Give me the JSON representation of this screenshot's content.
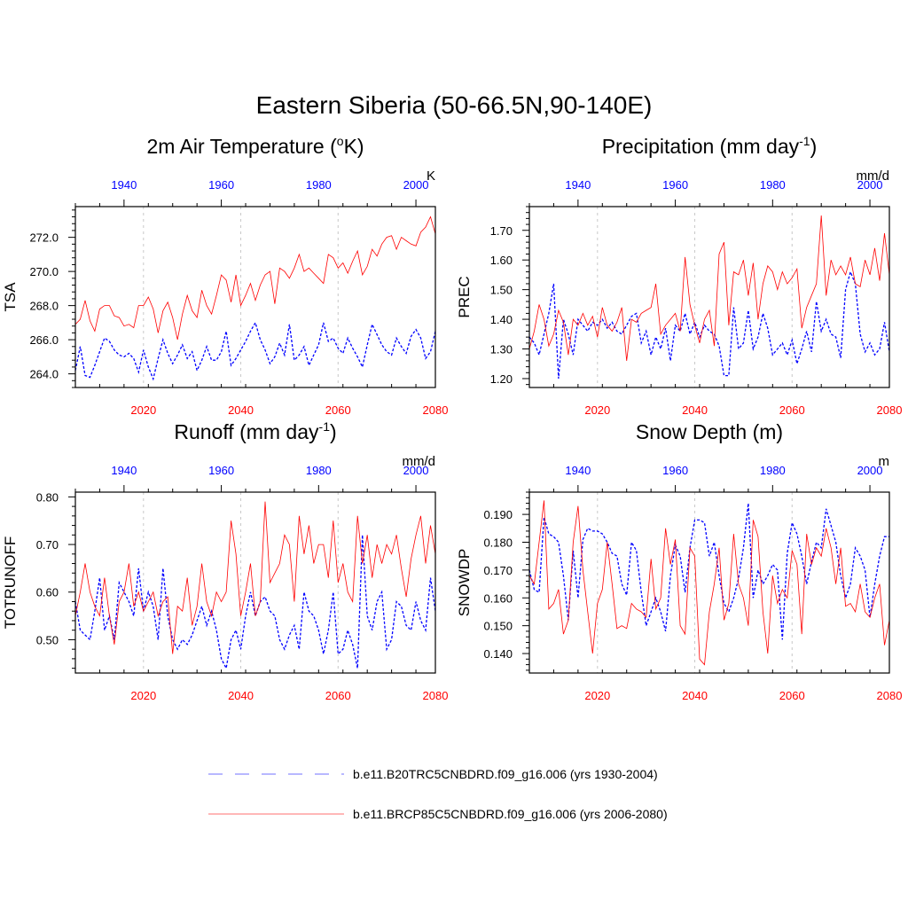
{
  "title": "Eastern Siberia (50-66.5N,90-140E)",
  "colors": {
    "hist": "#0000ff",
    "future": "#ff0000",
    "grid": "#c8c8c8"
  },
  "legend": [
    {
      "label": "b.e11.B20TRC5CNBDRD.f09_g16.006 (yrs 1930-2004)",
      "style": "dashed",
      "color": "#0000ff"
    },
    {
      "label": "b.e11.BRCP85C5CNBDRD.f09_g16.006 (yrs 2006-2080)",
      "style": "solid",
      "color": "#ff0000"
    }
  ],
  "chart_data": [
    {
      "type": "line",
      "title_main": "2m Air Temperature (",
      "title_sup": "o",
      "title_tail": "K)",
      "ylabel": "TSA",
      "unit": "K",
      "xlim_bottom": [
        2006,
        2080
      ],
      "xlim_top": [
        1930,
        2004
      ],
      "xticks_bottom": [
        2020,
        2040,
        2060,
        2080
      ],
      "xticks_top": [
        1940,
        1960,
        1980,
        2000
      ],
      "ylim": [
        263.2,
        273.8
      ],
      "yticks": [
        264.0,
        266.0,
        268.0,
        270.0,
        272.0
      ],
      "ytick_labels": [
        "264.0",
        "266.0",
        "268.0",
        "270.0",
        "272.0"
      ],
      "series": [
        {
          "role": "hist",
          "x_axis": "top",
          "x_start": 1930,
          "values": [
            264.2,
            265.6,
            263.9,
            263.8,
            264.5,
            265.3,
            266.1,
            265.9,
            265.4,
            265.1,
            265.0,
            265.2,
            264.9,
            264.1,
            265.4,
            264.4,
            263.7,
            264.9,
            266.0,
            265.2,
            264.6,
            265.1,
            265.7,
            264.9,
            265.3,
            264.2,
            264.8,
            265.6,
            264.8,
            264.8,
            265.3,
            266.5,
            264.5,
            264.9,
            265.4,
            265.9,
            266.5,
            267.0,
            266.0,
            265.4,
            264.6,
            265.0,
            265.8,
            265.1,
            266.9,
            264.8,
            265.1,
            265.6,
            264.5,
            265.1,
            265.7,
            267.0,
            265.9,
            266.1,
            265.5,
            265.2,
            266.1,
            265.5,
            265.0,
            264.4,
            265.7,
            266.9,
            266.3,
            265.7,
            265.3,
            265.1,
            266.1,
            265.6,
            265.2,
            266.2,
            266.6,
            266.1,
            264.9,
            265.3,
            266.5
          ]
        },
        {
          "role": "future",
          "x_axis": "bottom",
          "x_start": 2006,
          "values": [
            266.9,
            267.2,
            268.3,
            267.1,
            266.5,
            267.8,
            268.0,
            268.0,
            267.4,
            267.3,
            266.8,
            266.9,
            266.7,
            268.0,
            268.0,
            268.5,
            267.8,
            266.4,
            267.7,
            268.2,
            267.3,
            266.0,
            267.5,
            268.6,
            267.7,
            267.3,
            268.9,
            268.0,
            267.5,
            268.6,
            269.8,
            269.5,
            268.2,
            269.8,
            268.0,
            268.6,
            269.3,
            268.3,
            269.2,
            269.8,
            270.0,
            268.1,
            270.2,
            270.0,
            269.6,
            270.2,
            271.0,
            270.0,
            270.2,
            269.9,
            269.6,
            269.3,
            271.0,
            270.8,
            270.2,
            270.5,
            269.9,
            270.6,
            271.2,
            269.8,
            270.3,
            271.3,
            270.9,
            271.6,
            272.0,
            272.1,
            271.3,
            272.0,
            271.8,
            271.6,
            271.5,
            272.3,
            272.6,
            273.2,
            272.2
          ]
        }
      ]
    },
    {
      "type": "line",
      "title_main": "Precipitation (mm day",
      "title_sup": "-1",
      "title_tail": ")",
      "ylabel": "PREC",
      "unit": "mm/d",
      "xlim_bottom": [
        2006,
        2080
      ],
      "xlim_top": [
        1930,
        2004
      ],
      "xticks_bottom": [
        2020,
        2040,
        2060,
        2080
      ],
      "xticks_top": [
        1940,
        1960,
        1980,
        2000
      ],
      "ylim": [
        1.17,
        1.78
      ],
      "yticks": [
        1.2,
        1.3,
        1.4,
        1.5,
        1.6,
        1.7
      ],
      "ytick_labels": [
        "1.20",
        "1.30",
        "1.40",
        "1.50",
        "1.60",
        "1.70"
      ],
      "series": [
        {
          "role": "hist",
          "x_axis": "top",
          "x_start": 1930,
          "values": [
            1.34,
            1.32,
            1.28,
            1.35,
            1.42,
            1.52,
            1.2,
            1.4,
            1.35,
            1.28,
            1.4,
            1.38,
            1.36,
            1.39,
            1.38,
            1.4,
            1.37,
            1.39,
            1.36,
            1.35,
            1.38,
            1.41,
            1.42,
            1.32,
            1.36,
            1.28,
            1.34,
            1.3,
            1.37,
            1.26,
            1.38,
            1.36,
            1.42,
            1.35,
            1.39,
            1.34,
            1.38,
            1.36,
            1.35,
            1.31,
            1.21,
            1.21,
            1.44,
            1.3,
            1.32,
            1.43,
            1.3,
            1.34,
            1.42,
            1.37,
            1.28,
            1.3,
            1.32,
            1.28,
            1.33,
            1.25,
            1.3,
            1.36,
            1.29,
            1.46,
            1.36,
            1.4,
            1.35,
            1.34,
            1.27,
            1.5,
            1.56,
            1.52,
            1.35,
            1.29,
            1.32,
            1.28,
            1.3,
            1.39,
            1.29
          ]
        },
        {
          "role": "future",
          "x_axis": "bottom",
          "x_start": 2006,
          "values": [
            1.3,
            1.36,
            1.45,
            1.4,
            1.31,
            1.35,
            1.43,
            1.39,
            1.28,
            1.4,
            1.38,
            1.42,
            1.38,
            1.41,
            1.34,
            1.44,
            1.38,
            1.36,
            1.39,
            1.44,
            1.26,
            1.4,
            1.39,
            1.42,
            1.43,
            1.44,
            1.52,
            1.35,
            1.38,
            1.4,
            1.42,
            1.36,
            1.61,
            1.45,
            1.38,
            1.32,
            1.4,
            1.43,
            1.31,
            1.62,
            1.66,
            1.38,
            1.56,
            1.55,
            1.6,
            1.48,
            1.59,
            1.4,
            1.52,
            1.58,
            1.56,
            1.5,
            1.56,
            1.52,
            1.54,
            1.57,
            1.37,
            1.44,
            1.48,
            1.52,
            1.75,
            1.48,
            1.6,
            1.55,
            1.58,
            1.55,
            1.61,
            1.52,
            1.51,
            1.6,
            1.55,
            1.64,
            1.53,
            1.69,
            1.55
          ]
        }
      ]
    },
    {
      "type": "line",
      "title_main": "Runoff (mm day",
      "title_sup": "-1",
      "title_tail": ")",
      "ylabel": "TOTRUNOFF",
      "unit": "mm/d",
      "xlim_bottom": [
        2006,
        2080
      ],
      "xlim_top": [
        1930,
        2004
      ],
      "xticks_bottom": [
        2020,
        2040,
        2060,
        2080
      ],
      "xticks_top": [
        1940,
        1960,
        1980,
        2000
      ],
      "ylim": [
        0.43,
        0.81
      ],
      "yticks": [
        0.5,
        0.6,
        0.7,
        0.8
      ],
      "ytick_labels": [
        "0.50",
        "0.60",
        "0.70",
        "0.80"
      ],
      "series": [
        {
          "role": "hist",
          "x_axis": "top",
          "x_start": 1930,
          "values": [
            0.58,
            0.52,
            0.51,
            0.5,
            0.56,
            0.63,
            0.52,
            0.55,
            0.5,
            0.62,
            0.6,
            0.58,
            0.55,
            0.65,
            0.56,
            0.6,
            0.57,
            0.5,
            0.65,
            0.55,
            0.5,
            0.48,
            0.5,
            0.49,
            0.51,
            0.54,
            0.57,
            0.53,
            0.56,
            0.52,
            0.46,
            0.44,
            0.5,
            0.52,
            0.48,
            0.55,
            0.6,
            0.55,
            0.58,
            0.59,
            0.56,
            0.55,
            0.5,
            0.48,
            0.51,
            0.53,
            0.48,
            0.6,
            0.56,
            0.55,
            0.52,
            0.47,
            0.52,
            0.6,
            0.47,
            0.48,
            0.52,
            0.49,
            0.44,
            0.72,
            0.55,
            0.52,
            0.58,
            0.6,
            0.48,
            0.5,
            0.58,
            0.57,
            0.53,
            0.52,
            0.58,
            0.54,
            0.52,
            0.63,
            0.56
          ]
        },
        {
          "role": "future",
          "x_axis": "bottom",
          "x_start": 2006,
          "values": [
            0.55,
            0.6,
            0.66,
            0.6,
            0.57,
            0.55,
            0.63,
            0.55,
            0.49,
            0.58,
            0.6,
            0.66,
            0.57,
            0.6,
            0.56,
            0.58,
            0.6,
            0.55,
            0.58,
            0.59,
            0.47,
            0.57,
            0.56,
            0.63,
            0.53,
            0.57,
            0.66,
            0.58,
            0.55,
            0.6,
            0.58,
            0.6,
            0.75,
            0.68,
            0.55,
            0.6,
            0.66,
            0.55,
            0.58,
            0.79,
            0.62,
            0.64,
            0.66,
            0.72,
            0.7,
            0.58,
            0.76,
            0.68,
            0.74,
            0.66,
            0.7,
            0.7,
            0.63,
            0.75,
            0.62,
            0.66,
            0.6,
            0.58,
            0.76,
            0.66,
            0.72,
            0.63,
            0.7,
            0.66,
            0.7,
            0.68,
            0.72,
            0.65,
            0.59,
            0.67,
            0.72,
            0.76,
            0.66,
            0.74,
            0.68
          ]
        }
      ]
    },
    {
      "type": "line",
      "title_main": "Snow Depth (m)",
      "title_sup": "",
      "title_tail": "",
      "ylabel": "SNOWDP",
      "unit": "m",
      "xlim_bottom": [
        2006,
        2080
      ],
      "xlim_top": [
        1930,
        2004
      ],
      "xticks_bottom": [
        2020,
        2040,
        2060,
        2080
      ],
      "xticks_top": [
        1940,
        1960,
        1980,
        2000
      ],
      "ylim": [
        0.133,
        0.198
      ],
      "yticks": [
        0.14,
        0.15,
        0.16,
        0.17,
        0.18,
        0.19
      ],
      "ytick_labels": [
        "0.140",
        "0.150",
        "0.160",
        "0.170",
        "0.180",
        "0.190"
      ],
      "series": [
        {
          "role": "hist",
          "x_axis": "top",
          "x_start": 1930,
          "values": [
            0.17,
            0.163,
            0.162,
            0.189,
            0.183,
            0.182,
            0.18,
            0.168,
            0.152,
            0.177,
            0.16,
            0.181,
            0.185,
            0.184,
            0.184,
            0.183,
            0.18,
            0.176,
            0.175,
            0.165,
            0.161,
            0.18,
            0.177,
            0.162,
            0.15,
            0.155,
            0.16,
            0.155,
            0.148,
            0.168,
            0.179,
            0.175,
            0.162,
            0.178,
            0.188,
            0.188,
            0.187,
            0.175,
            0.18,
            0.168,
            0.158,
            0.155,
            0.16,
            0.167,
            0.178,
            0.194,
            0.16,
            0.17,
            0.165,
            0.168,
            0.172,
            0.17,
            0.145,
            0.176,
            0.187,
            0.183,
            0.175,
            0.165,
            0.173,
            0.18,
            0.178,
            0.192,
            0.186,
            0.18,
            0.168,
            0.16,
            0.165,
            0.178,
            0.175,
            0.17,
            0.153,
            0.165,
            0.175,
            0.182,
            0.182
          ]
        },
        {
          "role": "future",
          "x_axis": "bottom",
          "x_start": 2006,
          "values": [
            0.168,
            0.165,
            0.18,
            0.195,
            0.156,
            0.158,
            0.163,
            0.147,
            0.152,
            0.18,
            0.193,
            0.17,
            0.155,
            0.14,
            0.158,
            0.163,
            0.18,
            0.165,
            0.149,
            0.15,
            0.149,
            0.158,
            0.156,
            0.155,
            0.153,
            0.174,
            0.156,
            0.16,
            0.185,
            0.172,
            0.181,
            0.15,
            0.147,
            0.178,
            0.175,
            0.138,
            0.136,
            0.155,
            0.165,
            0.178,
            0.152,
            0.158,
            0.183,
            0.165,
            0.16,
            0.15,
            0.188,
            0.182,
            0.155,
            0.14,
            0.168,
            0.158,
            0.163,
            0.16,
            0.177,
            0.172,
            0.147,
            0.183,
            0.172,
            0.178,
            0.175,
            0.185,
            0.178,
            0.165,
            0.178,
            0.157,
            0.158,
            0.155,
            0.165,
            0.155,
            0.153,
            0.16,
            0.165,
            0.143,
            0.152
          ]
        }
      ]
    }
  ]
}
